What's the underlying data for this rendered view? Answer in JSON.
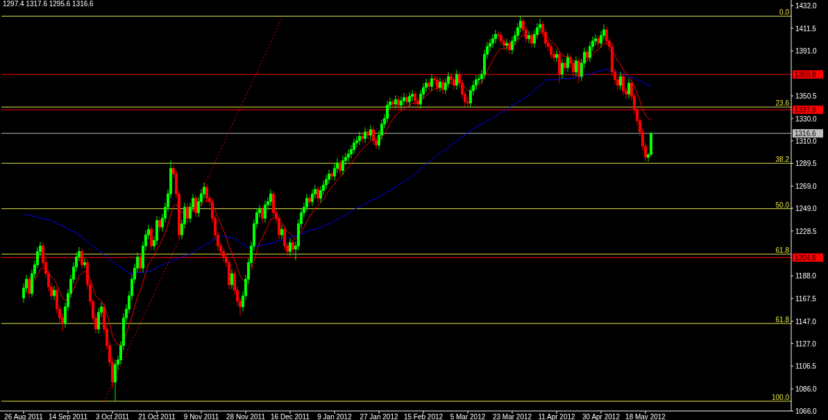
{
  "chart_data": {
    "type": "candlestick",
    "title": "1297.4 1317.6 1295.6 1316.6",
    "categories": [
      "26 Aug 2011",
      null,
      null,
      null,
      null,
      null,
      null,
      null,
      null,
      null,
      null,
      null,
      null,
      null,
      null,
      null,
      "14 Sep 2011",
      null,
      null,
      null,
      null,
      null,
      null,
      null,
      null,
      null,
      null,
      null,
      null,
      null,
      null,
      null,
      "3 Oct 2011",
      null,
      null,
      null,
      null,
      null,
      null,
      null,
      null,
      null,
      null,
      null,
      null,
      null,
      null,
      null,
      "21 Oct 2011",
      null,
      null,
      null,
      null,
      null,
      null,
      null,
      null,
      null,
      null,
      null,
      null,
      null,
      null,
      null,
      "9 Nov 2011",
      null,
      null,
      null,
      null,
      null,
      null,
      null,
      null,
      null,
      null,
      null,
      null,
      null,
      null,
      null,
      "28 Nov 2011",
      null,
      null,
      null,
      null,
      null,
      null,
      null,
      null,
      null,
      null,
      null,
      null,
      null,
      null,
      null,
      "16 Dec 2011",
      null,
      null,
      null,
      null,
      null,
      null,
      null,
      null,
      null,
      null,
      null,
      null,
      null,
      null,
      null,
      "9 Jan 2012",
      null,
      null,
      null,
      null,
      null,
      null,
      null,
      null,
      null,
      null,
      null,
      null,
      null,
      null,
      null,
      "27 Jan 2012",
      null,
      null,
      null,
      null,
      null,
      null,
      null,
      null,
      null,
      null,
      null,
      null,
      null,
      null,
      null,
      "15 Feb 2012",
      null,
      null,
      null,
      null,
      null,
      null,
      null,
      null,
      null,
      null,
      null,
      null,
      null,
      null,
      null,
      "5 Mar 2012",
      null,
      null,
      null,
      null,
      null,
      null,
      null,
      null,
      null,
      null,
      null,
      null,
      null,
      null,
      null,
      "23 Mar 2012",
      null,
      null,
      null,
      null,
      null,
      null,
      null,
      null,
      null,
      null,
      null,
      null,
      null,
      null,
      null,
      "11 Apr 2012",
      null,
      null,
      null,
      null,
      null,
      null,
      null,
      null,
      null,
      null,
      null,
      null,
      null,
      null,
      null,
      "30 Apr 2012",
      null,
      null,
      null,
      null,
      null,
      null,
      null,
      null,
      null,
      null,
      null,
      null,
      null,
      null,
      null,
      "18 May 2012",
      null,
      null
    ],
    "ohlc": [
      [
        1168,
        1181,
        1164,
        1177
      ],
      [
        1177,
        1189,
        1173,
        1185
      ],
      [
        1185,
        1188,
        1168,
        1172
      ],
      [
        1172,
        1194,
        1169,
        1190
      ],
      [
        1190,
        1202,
        1186,
        1198
      ],
      [
        1198,
        1214,
        1195,
        1210
      ],
      [
        1210,
        1219,
        1206,
        1215
      ],
      [
        1215,
        1218,
        1196,
        1200
      ],
      [
        1200,
        1204,
        1186,
        1190
      ],
      [
        1190,
        1193,
        1174,
        1178
      ],
      [
        1178,
        1182,
        1166,
        1170
      ],
      [
        1170,
        1179,
        1166,
        1175
      ],
      [
        1175,
        1178,
        1154,
        1158
      ],
      [
        1158,
        1162,
        1146,
        1150
      ],
      [
        1150,
        1154,
        1138,
        1145
      ],
      [
        1145,
        1164,
        1141,
        1160
      ],
      [
        1160,
        1176,
        1156,
        1172
      ],
      [
        1172,
        1189,
        1168,
        1185
      ],
      [
        1185,
        1200,
        1181,
        1196
      ],
      [
        1196,
        1209,
        1192,
        1205
      ],
      [
        1205,
        1214,
        1201,
        1210
      ],
      [
        1210,
        1213,
        1194,
        1198
      ],
      [
        1198,
        1204,
        1195,
        1200
      ],
      [
        1200,
        1203,
        1176,
        1180
      ],
      [
        1180,
        1184,
        1161,
        1165
      ],
      [
        1165,
        1168,
        1146,
        1150
      ],
      [
        1150,
        1154,
        1136,
        1140
      ],
      [
        1140,
        1159,
        1136,
        1155
      ],
      [
        1155,
        1164,
        1151,
        1160
      ],
      [
        1160,
        1163,
        1136,
        1140
      ],
      [
        1140,
        1144,
        1121,
        1125
      ],
      [
        1125,
        1129,
        1106,
        1110
      ],
      [
        1110,
        1114,
        1086,
        1092
      ],
      [
        1092,
        1112,
        1074.8,
        1108
      ],
      [
        1108,
        1116,
        1103,
        1112
      ],
      [
        1112,
        1129,
        1108,
        1125
      ],
      [
        1125,
        1154,
        1121,
        1150
      ],
      [
        1150,
        1162,
        1146,
        1158
      ],
      [
        1158,
        1174,
        1154,
        1170
      ],
      [
        1170,
        1189,
        1166,
        1185
      ],
      [
        1185,
        1199,
        1181,
        1195
      ],
      [
        1195,
        1209,
        1191,
        1205
      ],
      [
        1205,
        1208,
        1191,
        1195
      ],
      [
        1195,
        1219,
        1191,
        1215
      ],
      [
        1215,
        1229,
        1211,
        1225
      ],
      [
        1225,
        1234,
        1221,
        1230
      ],
      [
        1230,
        1233,
        1211,
        1215
      ],
      [
        1215,
        1224,
        1211,
        1220
      ],
      [
        1220,
        1242,
        1216,
        1238
      ],
      [
        1238,
        1241,
        1228,
        1232
      ],
      [
        1232,
        1244,
        1228,
        1240
      ],
      [
        1240,
        1254,
        1236,
        1250
      ],
      [
        1250,
        1266,
        1246,
        1262
      ],
      [
        1262,
        1292,
        1258,
        1285
      ],
      [
        1285,
        1288,
        1276,
        1280
      ],
      [
        1280,
        1283,
        1258,
        1262
      ],
      [
        1262,
        1265,
        1221,
        1225
      ],
      [
        1225,
        1239,
        1221,
        1235
      ],
      [
        1235,
        1254,
        1231,
        1250
      ],
      [
        1250,
        1253,
        1236,
        1240
      ],
      [
        1240,
        1254,
        1236,
        1250
      ],
      [
        1250,
        1262,
        1246,
        1258
      ],
      [
        1258,
        1261,
        1241,
        1245
      ],
      [
        1245,
        1259,
        1241,
        1255
      ],
      [
        1255,
        1266,
        1251,
        1262
      ],
      [
        1262,
        1272,
        1258,
        1268
      ],
      [
        1268,
        1271,
        1254,
        1258
      ],
      [
        1258,
        1261,
        1251,
        1255
      ],
      [
        1255,
        1258,
        1236,
        1240
      ],
      [
        1240,
        1243,
        1221,
        1225
      ],
      [
        1225,
        1228,
        1211,
        1215
      ],
      [
        1215,
        1218,
        1206,
        1210
      ],
      [
        1210,
        1213,
        1201,
        1205
      ],
      [
        1205,
        1208,
        1196,
        1200
      ],
      [
        1200,
        1203,
        1176,
        1180
      ],
      [
        1180,
        1194,
        1176,
        1190
      ],
      [
        1190,
        1193,
        1171,
        1175
      ],
      [
        1175,
        1178,
        1161,
        1165
      ],
      [
        1165,
        1168,
        1152,
        1160
      ],
      [
        1160,
        1174,
        1156,
        1170
      ],
      [
        1170,
        1189,
        1166,
        1185
      ],
      [
        1185,
        1204,
        1181,
        1200
      ],
      [
        1200,
        1219,
        1196,
        1215
      ],
      [
        1215,
        1239,
        1211,
        1235
      ],
      [
        1235,
        1249,
        1231,
        1245
      ],
      [
        1245,
        1252,
        1241,
        1248
      ],
      [
        1248,
        1251,
        1236,
        1240
      ],
      [
        1240,
        1256,
        1236,
        1252
      ],
      [
        1252,
        1259,
        1248,
        1255
      ],
      [
        1255,
        1266,
        1251,
        1262
      ],
      [
        1262,
        1265,
        1241,
        1245
      ],
      [
        1245,
        1248,
        1236,
        1240
      ],
      [
        1240,
        1243,
        1221,
        1225
      ],
      [
        1225,
        1234,
        1221,
        1230
      ],
      [
        1230,
        1233,
        1211,
        1215
      ],
      [
        1215,
        1218,
        1206,
        1210
      ],
      [
        1210,
        1222,
        1206,
        1218
      ],
      [
        1218,
        1221,
        1208,
        1212
      ],
      [
        1212,
        1219,
        1202,
        1215
      ],
      [
        1215,
        1239,
        1211,
        1235
      ],
      [
        1235,
        1249,
        1231,
        1245
      ],
      [
        1245,
        1254,
        1241,
        1250
      ],
      [
        1250,
        1262,
        1246,
        1258
      ],
      [
        1258,
        1261,
        1251,
        1255
      ],
      [
        1255,
        1266,
        1251,
        1262
      ],
      [
        1262,
        1270,
        1258,
        1266
      ],
      [
        1266,
        1269,
        1254,
        1258
      ],
      [
        1258,
        1269,
        1254,
        1265
      ],
      [
        1265,
        1274,
        1261,
        1270
      ],
      [
        1270,
        1279,
        1266,
        1275
      ],
      [
        1275,
        1284,
        1271,
        1280
      ],
      [
        1280,
        1283,
        1274,
        1278
      ],
      [
        1278,
        1289,
        1274,
        1285
      ],
      [
        1285,
        1294,
        1281,
        1290
      ],
      [
        1290,
        1293,
        1279,
        1283
      ],
      [
        1283,
        1296,
        1279,
        1292
      ],
      [
        1292,
        1299,
        1288,
        1295
      ],
      [
        1295,
        1302,
        1291,
        1298
      ],
      [
        1298,
        1306,
        1294,
        1302
      ],
      [
        1302,
        1312,
        1298,
        1308
      ],
      [
        1308,
        1314,
        1304,
        1310
      ],
      [
        1310,
        1318,
        1306,
        1314
      ],
      [
        1314,
        1317,
        1308,
        1312
      ],
      [
        1312,
        1322,
        1308,
        1318
      ],
      [
        1318,
        1321,
        1311,
        1315
      ],
      [
        1315,
        1324,
        1311,
        1320
      ],
      [
        1320,
        1323,
        1306,
        1310
      ],
      [
        1310,
        1313,
        1302,
        1306
      ],
      [
        1306,
        1319,
        1302,
        1315
      ],
      [
        1315,
        1329,
        1311,
        1325
      ],
      [
        1325,
        1334,
        1321,
        1330
      ],
      [
        1330,
        1346,
        1326,
        1342
      ],
      [
        1342,
        1349,
        1338,
        1345
      ],
      [
        1345,
        1348,
        1339,
        1343
      ],
      [
        1343,
        1351,
        1339,
        1347
      ],
      [
        1347,
        1350,
        1338,
        1342
      ],
      [
        1342,
        1350,
        1338,
        1346
      ],
      [
        1346,
        1353,
        1342,
        1349
      ],
      [
        1349,
        1352,
        1341,
        1345
      ],
      [
        1345,
        1354,
        1341,
        1350
      ],
      [
        1350,
        1356,
        1346,
        1352
      ],
      [
        1352,
        1355,
        1342,
        1346
      ],
      [
        1346,
        1349,
        1339,
        1343
      ],
      [
        1343,
        1356,
        1339,
        1352
      ],
      [
        1352,
        1362,
        1348,
        1358
      ],
      [
        1358,
        1366,
        1354,
        1362
      ],
      [
        1362,
        1365,
        1355,
        1359
      ],
      [
        1359,
        1370,
        1355,
        1366
      ],
      [
        1366,
        1369,
        1361,
        1365
      ],
      [
        1365,
        1368,
        1354,
        1358
      ],
      [
        1358,
        1367,
        1354,
        1363
      ],
      [
        1363,
        1366,
        1352,
        1356
      ],
      [
        1356,
        1366,
        1352,
        1362
      ],
      [
        1362,
        1372,
        1358,
        1368
      ],
      [
        1368,
        1371,
        1361,
        1365
      ],
      [
        1365,
        1368,
        1356,
        1360
      ],
      [
        1360,
        1374,
        1356,
        1370
      ],
      [
        1370,
        1373,
        1358,
        1362
      ],
      [
        1362,
        1365,
        1348,
        1352
      ],
      [
        1352,
        1355,
        1341,
        1345
      ],
      [
        1345,
        1350,
        1340,
        1344
      ],
      [
        1344,
        1359,
        1340,
        1355
      ],
      [
        1355,
        1364,
        1351,
        1360
      ],
      [
        1360,
        1369,
        1356,
        1365
      ],
      [
        1365,
        1370,
        1361,
        1366
      ],
      [
        1366,
        1374,
        1362,
        1370
      ],
      [
        1370,
        1392,
        1366,
        1388
      ],
      [
        1388,
        1399,
        1384,
        1395
      ],
      [
        1395,
        1402,
        1391,
        1398
      ],
      [
        1398,
        1406,
        1394,
        1402
      ],
      [
        1402,
        1410,
        1398,
        1406
      ],
      [
        1406,
        1409,
        1401,
        1405
      ],
      [
        1405,
        1408,
        1396,
        1400
      ],
      [
        1400,
        1403,
        1392,
        1396
      ],
      [
        1396,
        1402,
        1392,
        1398
      ],
      [
        1398,
        1401,
        1388,
        1392
      ],
      [
        1392,
        1404,
        1388,
        1400
      ],
      [
        1400,
        1409,
        1396,
        1405
      ],
      [
        1405,
        1416,
        1401,
        1412
      ],
      [
        1412,
        1422.4,
        1408,
        1418
      ],
      [
        1418,
        1421,
        1406,
        1410
      ],
      [
        1410,
        1413,
        1398,
        1402
      ],
      [
        1402,
        1409,
        1398,
        1405
      ],
      [
        1405,
        1408,
        1394,
        1398
      ],
      [
        1398,
        1410,
        1394,
        1406
      ],
      [
        1406,
        1416,
        1402,
        1412
      ],
      [
        1412,
        1420,
        1408,
        1415
      ],
      [
        1415,
        1418,
        1404,
        1408
      ],
      [
        1408,
        1411,
        1394,
        1398
      ],
      [
        1398,
        1401,
        1391,
        1395
      ],
      [
        1395,
        1398,
        1384,
        1388
      ],
      [
        1388,
        1391,
        1381,
        1385
      ],
      [
        1385,
        1392,
        1381,
        1388
      ],
      [
        1388,
        1391,
        1362,
        1370
      ],
      [
        1370,
        1384,
        1366,
        1380
      ],
      [
        1380,
        1383,
        1372,
        1376
      ],
      [
        1376,
        1389,
        1372,
        1385
      ],
      [
        1385,
        1388,
        1376,
        1380
      ],
      [
        1380,
        1383,
        1368,
        1372
      ],
      [
        1372,
        1386,
        1368,
        1382
      ],
      [
        1382,
        1385,
        1362,
        1368
      ],
      [
        1368,
        1384,
        1364,
        1380
      ],
      [
        1380,
        1394,
        1376,
        1390
      ],
      [
        1390,
        1393,
        1381,
        1385
      ],
      [
        1385,
        1399,
        1381,
        1395
      ],
      [
        1395,
        1404,
        1391,
        1400
      ],
      [
        1400,
        1406,
        1396,
        1402
      ],
      [
        1402,
        1405,
        1394,
        1398
      ],
      [
        1398,
        1409,
        1394,
        1405
      ],
      [
        1405,
        1415,
        1401,
        1410
      ],
      [
        1410,
        1413,
        1396,
        1400
      ],
      [
        1400,
        1403,
        1391,
        1395
      ],
      [
        1395,
        1398,
        1368,
        1372
      ],
      [
        1372,
        1375,
        1361,
        1365
      ],
      [
        1365,
        1368,
        1356,
        1360
      ],
      [
        1360,
        1372,
        1356,
        1368
      ],
      [
        1368,
        1371,
        1351,
        1355
      ],
      [
        1355,
        1358,
        1348,
        1352
      ],
      [
        1352,
        1366,
        1348,
        1362
      ],
      [
        1362,
        1365,
        1346,
        1350
      ],
      [
        1350,
        1353,
        1334,
        1338
      ],
      [
        1338,
        1341,
        1324,
        1328
      ],
      [
        1328,
        1331,
        1314,
        1318
      ],
      [
        1318,
        1321,
        1301,
        1305
      ],
      [
        1305,
        1308,
        1291,
        1295
      ],
      [
        1295,
        1299,
        1291,
        1297.4
      ],
      [
        1297.4,
        1317.6,
        1295.6,
        1316.6
      ]
    ],
    "series": [
      {
        "type": "line",
        "color": "#ff0000",
        "values": [
          1179,
          1180,
          1178,
          1181,
          1184,
          1189,
          1194,
          1195,
          1194,
          1191,
          1187,
          1185,
          1180,
          1174,
          1168,
          1166,
          1167,
          1171,
          1176,
          1182,
          1188,
          1190,
          1192,
          1190,
          1185,
          1178,
          1170,
          1167,
          1166,
          1161,
          1154,
          1145,
          1134,
          1129,
          1126,
          1126,
          1131,
          1136,
          1143,
          1151,
          1160,
          1169,
          1174,
          1182,
          1191,
          1199,
          1202,
          1206,
          1212,
          1216,
          1221,
          1227,
          1234,
          1244,
          1251,
          1253,
          1247,
          1245,
          1246,
          1245,
          1246,
          1248,
          1247,
          1249,
          1252,
          1255,
          1256,
          1256,
          1253,
          1247,
          1241,
          1235,
          1229,
          1223,
          1214,
          1209,
          1202,
          1195,
          1188,
          1184,
          1184,
          null,
          1193,
          1201,
          1210,
          1218,
          1222,
          1228,
          1233,
          1239,
          1240,
          1240,
          1237,
          1236,
          1232,
          1228,
          1226,
          1223,
          1221,
          1224,
          1228,
          1232,
          1237,
          1241,
          1245,
          1249,
          1251,
          1254,
          1257,
          1261,
          1265,
          1268,
          1271,
          1275,
          1277,
          1280,
          1283,
          1286,
          1289,
          1293,
          1296,
          1300,
          1302,
          1305,
          1307,
          1310,
          1310,
          1309,
          1310,
          1313,
          1316,
          1321,
          1326,
          1329,
          1333,
          1335,
          1337,
          1339,
          1340,
          1342,
          1344,
          1344,
          1344,
          1346,
          1348,
          1351,
          1353,
          1355,
          1357,
          1357,
          1358,
          1358,
          1359,
          1361,
          1362,
          1361,
          1363,
          1363,
          1361,
          1358,
          1355,
          1355,
          1356,
          1358,
          1360,
          1362,
          1367,
          1373,
          1378,
          1383,
          1387,
          1391,
          1393,
          1393,
          1394,
          1394,
          1395,
          1397,
          1400,
          1404,
          1405,
          1404,
          1404,
          1403,
          1404,
          1405,
          1407,
          1407,
          1405,
          1403,
          1400,
          1397,
          1395,
          1390,
          1388,
          1386,
          1386,
          1385,
          1382,
          1382,
          1379,
          1379,
          1381,
          1382,
          1385,
          1388,
          1391,
          1392,
          1395,
          1398,
          1398,
          1397,
          1392,
          1387,
          1382,
          1379,
          1374,
          1370,
          1368,
          1364,
          1359,
          1353,
          1346,
          1338,
          1333,
          1330,
          1329
        ]
      },
      {
        "type": "line",
        "color": "#0000ff",
        "values": [
          1244,
          1243,
          1243,
          1242,
          1242,
          1241,
          1240,
          1240,
          1239,
          1239,
          1238,
          1237,
          1235,
          1234,
          1233,
          1232,
          1230,
          1229,
          1228,
          1226,
          1225,
          1223,
          1221,
          1219,
          1217,
          1215,
          1213,
          1211,
          1209,
          1207,
          1205,
          1203,
          1201,
          1199,
          1197,
          1196,
          1194,
          1192,
          1190,
          1190,
          1190,
          1191,
          1191,
          1191,
          1192,
          1192,
          1193,
          1194,
          1195,
          1197,
          1198,
          1199,
          1200,
          1201,
          1202,
          1203,
          1204,
          1205,
          1206,
          1207,
          1208,
          1209,
          1211,
          1212,
          1214,
          1215,
          1217,
          1218,
          1220,
          1221,
          1223,
          1224,
          1224,
          1223,
          1223,
          1222,
          1222,
          1220,
          1218,
          1216,
          1215,
          1213,
          1214,
          1214,
          1215,
          1215,
          1216,
          1216,
          1217,
          1217,
          1218,
          1219,
          1220,
          1220,
          1221,
          1222,
          1223,
          1224,
          1224,
          1225,
          1226,
          1227,
          1228,
          1229,
          1230,
          1230,
          1231,
          1232,
          1233,
          1234,
          1235,
          1236,
          1238,
          1239,
          1240,
          1242,
          1243,
          1245,
          1246,
          1248,
          1249,
          1250,
          1252,
          1253,
          1254,
          1256,
          1257,
          1258,
          1259,
          1261,
          1262,
          1264,
          1265,
          1267,
          1268,
          1270,
          1272,
          1273,
          1275,
          1276,
          1278,
          1280,
          1282,
          1284,
          1287,
          1289,
          1291,
          1293,
          1295,
          1297,
          1299,
          1301,
          1302,
          1304,
          1306,
          1308,
          1310,
          1312,
          1314,
          1315,
          1317,
          1319,
          1321,
          1322,
          1324,
          1325,
          1326,
          1328,
          1329,
          1331,
          1332,
          1334,
          1335,
          1337,
          1338,
          1340,
          1342,
          1343,
          1345,
          1346,
          1348,
          1349,
          1351,
          1353,
          1355,
          1358,
          1360,
          1362,
          1365,
          1365,
          1365,
          1365,
          1365,
          1366,
          1366,
          1366,
          1366,
          1366,
          1367,
          1367,
          1367,
          1368,
          1369,
          1370,
          1370,
          1371,
          1372,
          1373,
          1373,
          1374,
          1374,
          1373,
          1373,
          1372,
          1372,
          1371,
          1370,
          1369,
          1368,
          1367,
          1366,
          1365,
          1364,
          1363,
          1361,
          1360,
          1359
        ]
      },
      {
        "type": "line",
        "color": "#ff0000",
        "line_style": "dotted",
        "values": [
          null,
          null,
          null,
          null,
          null,
          null,
          null,
          null,
          null,
          null,
          null,
          null,
          null,
          null,
          null,
          null,
          null,
          null,
          null,
          null,
          null,
          null,
          null,
          null,
          null,
          null,
          null,
          null,
          null,
          1074.8,
          1080.2,
          1085.6,
          1091,
          1096.4,
          1101.8,
          1107.2,
          1112.6,
          1118,
          1123.4,
          1128.8,
          1134.2,
          1139.6,
          1145,
          1150.4,
          1155.8,
          1161.2,
          1166.6,
          1172,
          1177.4,
          1182.8,
          1188.2,
          1193.6,
          1199,
          1204.4,
          1209.8,
          1215.2,
          1220.6,
          1226,
          1231.4,
          1236.8,
          1242.2,
          1247.6,
          1253,
          1258.4,
          1263.8,
          1269.2,
          1274.6,
          1280,
          1285.4,
          1290.8,
          1296.2,
          1301.6,
          1307,
          1312.4,
          1317.8,
          1323.2,
          1328.6,
          1334,
          1339.4,
          1344.8,
          1350.2,
          1355.6,
          1361,
          1366.4,
          1371.8,
          1377.2,
          1382.6,
          1388,
          1393.4,
          1398.8,
          1404.2,
          1409.6,
          1415,
          1420.4,
          null,
          null,
          null,
          null,
          null,
          null,
          null,
          null,
          null,
          null,
          null,
          null,
          null,
          null,
          null,
          null,
          null,
          null,
          null,
          null,
          null,
          null,
          null,
          null,
          null,
          null,
          null,
          null,
          null,
          null,
          null,
          null,
          null,
          null,
          null,
          null,
          null,
          null,
          null,
          null,
          null,
          null,
          null,
          null,
          null,
          null,
          null,
          null,
          null,
          null,
          null,
          null,
          null,
          null,
          null,
          null,
          null,
          null,
          null,
          null,
          null,
          null,
          null,
          null,
          null,
          null,
          null,
          null,
          null,
          null,
          null,
          null,
          null,
          null,
          null,
          null,
          null,
          null,
          null,
          null,
          null,
          null,
          null,
          null,
          null,
          null,
          null,
          null,
          null,
          null,
          null,
          null,
          null,
          null,
          null,
          null,
          null,
          null,
          null,
          null,
          null,
          null,
          null,
          null,
          null,
          null,
          null,
          null,
          null,
          null,
          null,
          null,
          null,
          null,
          null,
          null,
          null,
          null,
          null,
          null,
          null,
          null,
          null,
          null,
          null,
          null,
          null,
          null,
          null,
          null,
          null,
          null,
          null
        ]
      }
    ],
    "annotations": [
      {
        "text": "0.0",
        "y": 1422.4
      },
      {
        "text": "23.6",
        "y": 1340.4
      },
      {
        "text": "38.2",
        "y": 1289.6
      },
      {
        "text": "50.0",
        "y": 1248.6
      },
      {
        "text": "61.8",
        "y": 1207.6
      },
      {
        "text": "61.8",
        "y": 1145
      },
      {
        "text": "100.0",
        "y": 1074.8
      }
    ],
    "ylim": [
      1066,
      1437
    ],
    "yticks": [
      {
        "value": 1432,
        "label": "1432.0"
      },
      {
        "value": 1411.5,
        "label": "1411.5"
      },
      {
        "value": 1391,
        "label": "1391.0"
      },
      {
        "value": 1350.5,
        "label": "1350.5"
      },
      {
        "value": 1330,
        "label": "1330.0"
      },
      {
        "value": 1310,
        "label": "1310.0"
      },
      {
        "value": 1289.5,
        "label": "1289.5"
      },
      {
        "value": 1269,
        "label": "1269.0"
      },
      {
        "value": 1249,
        "label": "1249.0"
      },
      {
        "value": 1228.5,
        "label": "1228.5"
      },
      {
        "value": 1188,
        "label": "1188.0"
      },
      {
        "value": 1167.5,
        "label": "1167.5"
      },
      {
        "value": 1147,
        "label": "1147.0"
      },
      {
        "value": 1127,
        "label": "1127.0"
      },
      {
        "value": 1106.5,
        "label": "1106.5"
      },
      {
        "value": 1086,
        "label": "1086.0"
      },
      {
        "value": 1066,
        "label": "1066.0"
      }
    ],
    "ref_lines": [
      {
        "axis": "y",
        "value": 1422.4,
        "color": "#e8e84a"
      },
      {
        "axis": "y",
        "value": 1340.4,
        "color": "#e8e84a"
      },
      {
        "axis": "y",
        "value": 1289.6,
        "color": "#e8e84a"
      },
      {
        "axis": "y",
        "value": 1248.6,
        "color": "#e8e84a"
      },
      {
        "axis": "y",
        "value": 1207.6,
        "color": "#e8e84a"
      },
      {
        "axis": "y",
        "value": 1145,
        "color": "#e8e84a"
      },
      {
        "axis": "y",
        "value": 1074.8,
        "color": "#e8e84a"
      },
      {
        "axis": "y",
        "value": 1369.8,
        "label": "1369.8",
        "color": "#ff0000"
      },
      {
        "axis": "y",
        "value": 1337.9,
        "label": "1337.9",
        "color": "#ff0000"
      },
      {
        "axis": "y",
        "value": 1204.5,
        "label": "1204.5",
        "color": "#ff0000"
      },
      {
        "axis": "y",
        "value": 1316.6,
        "label": "1316.6",
        "color": "#c0c0c0"
      }
    ]
  }
}
